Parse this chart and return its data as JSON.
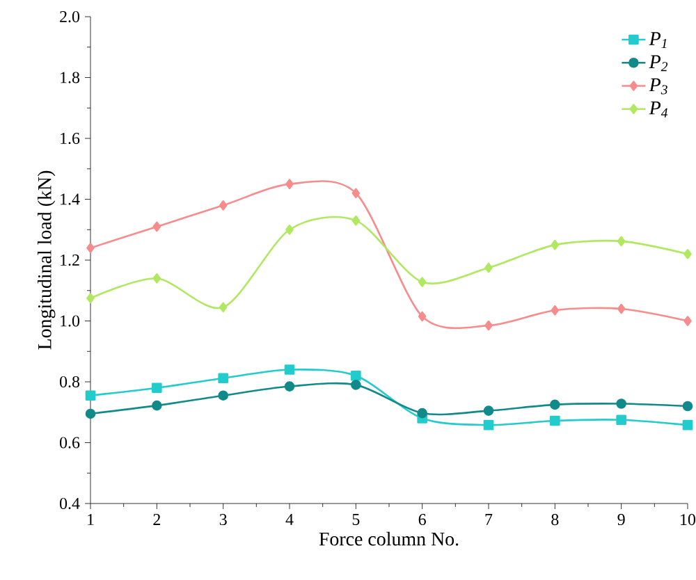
{
  "chart_data": {
    "type": "line",
    "xlabel": "Force column No.",
    "ylabel": "Longitudinal load (kN)",
    "x": [
      1,
      2,
      3,
      4,
      5,
      6,
      7,
      8,
      9,
      10
    ],
    "xlim": [
      1,
      10
    ],
    "xticks": [
      1,
      2,
      3,
      4,
      5,
      6,
      7,
      8,
      9,
      10
    ],
    "ylim": [
      0.4,
      2.0
    ],
    "yticks": [
      {
        "value": 0.4,
        "label": "0.4"
      },
      {
        "value": 0.6,
        "label": "0.6"
      },
      {
        "value": 0.8,
        "label": "0.8"
      },
      {
        "value": 1.0,
        "label": "1.0"
      },
      {
        "value": 1.2,
        "label": "1.2"
      },
      {
        "value": 1.4,
        "label": "1.4"
      },
      {
        "value": 1.6,
        "label": "1.6"
      },
      {
        "value": 1.8,
        "label": "1.8"
      },
      {
        "value": 2.0,
        "label": "2.0"
      }
    ],
    "legend": "top right",
    "grid": false,
    "series": [
      {
        "name": "P$_{1}$",
        "color": "#22cccc",
        "marker": "square",
        "values": [
          0.755,
          0.78,
          0.812,
          0.84,
          0.82,
          0.68,
          0.658,
          0.672,
          0.675,
          0.658
        ]
      },
      {
        "name": "P$_{2}$",
        "color": "#128a8a",
        "marker": "circle",
        "values": [
          0.695,
          0.722,
          0.755,
          0.785,
          0.79,
          0.697,
          0.705,
          0.725,
          0.728,
          0.72
        ]
      },
      {
        "name": "P$_{3}$",
        "color": "#f78c8c",
        "marker": "diamond",
        "values": [
          1.24,
          1.31,
          1.38,
          1.45,
          1.42,
          1.015,
          0.985,
          1.035,
          1.04,
          1.0
        ]
      },
      {
        "name": "P$_{4}$",
        "color": "#b0e860",
        "marker": "diamond",
        "values": [
          1.075,
          1.14,
          1.045,
          1.3,
          1.33,
          1.128,
          1.175,
          1.25,
          1.262,
          1.22
        ]
      }
    ]
  }
}
